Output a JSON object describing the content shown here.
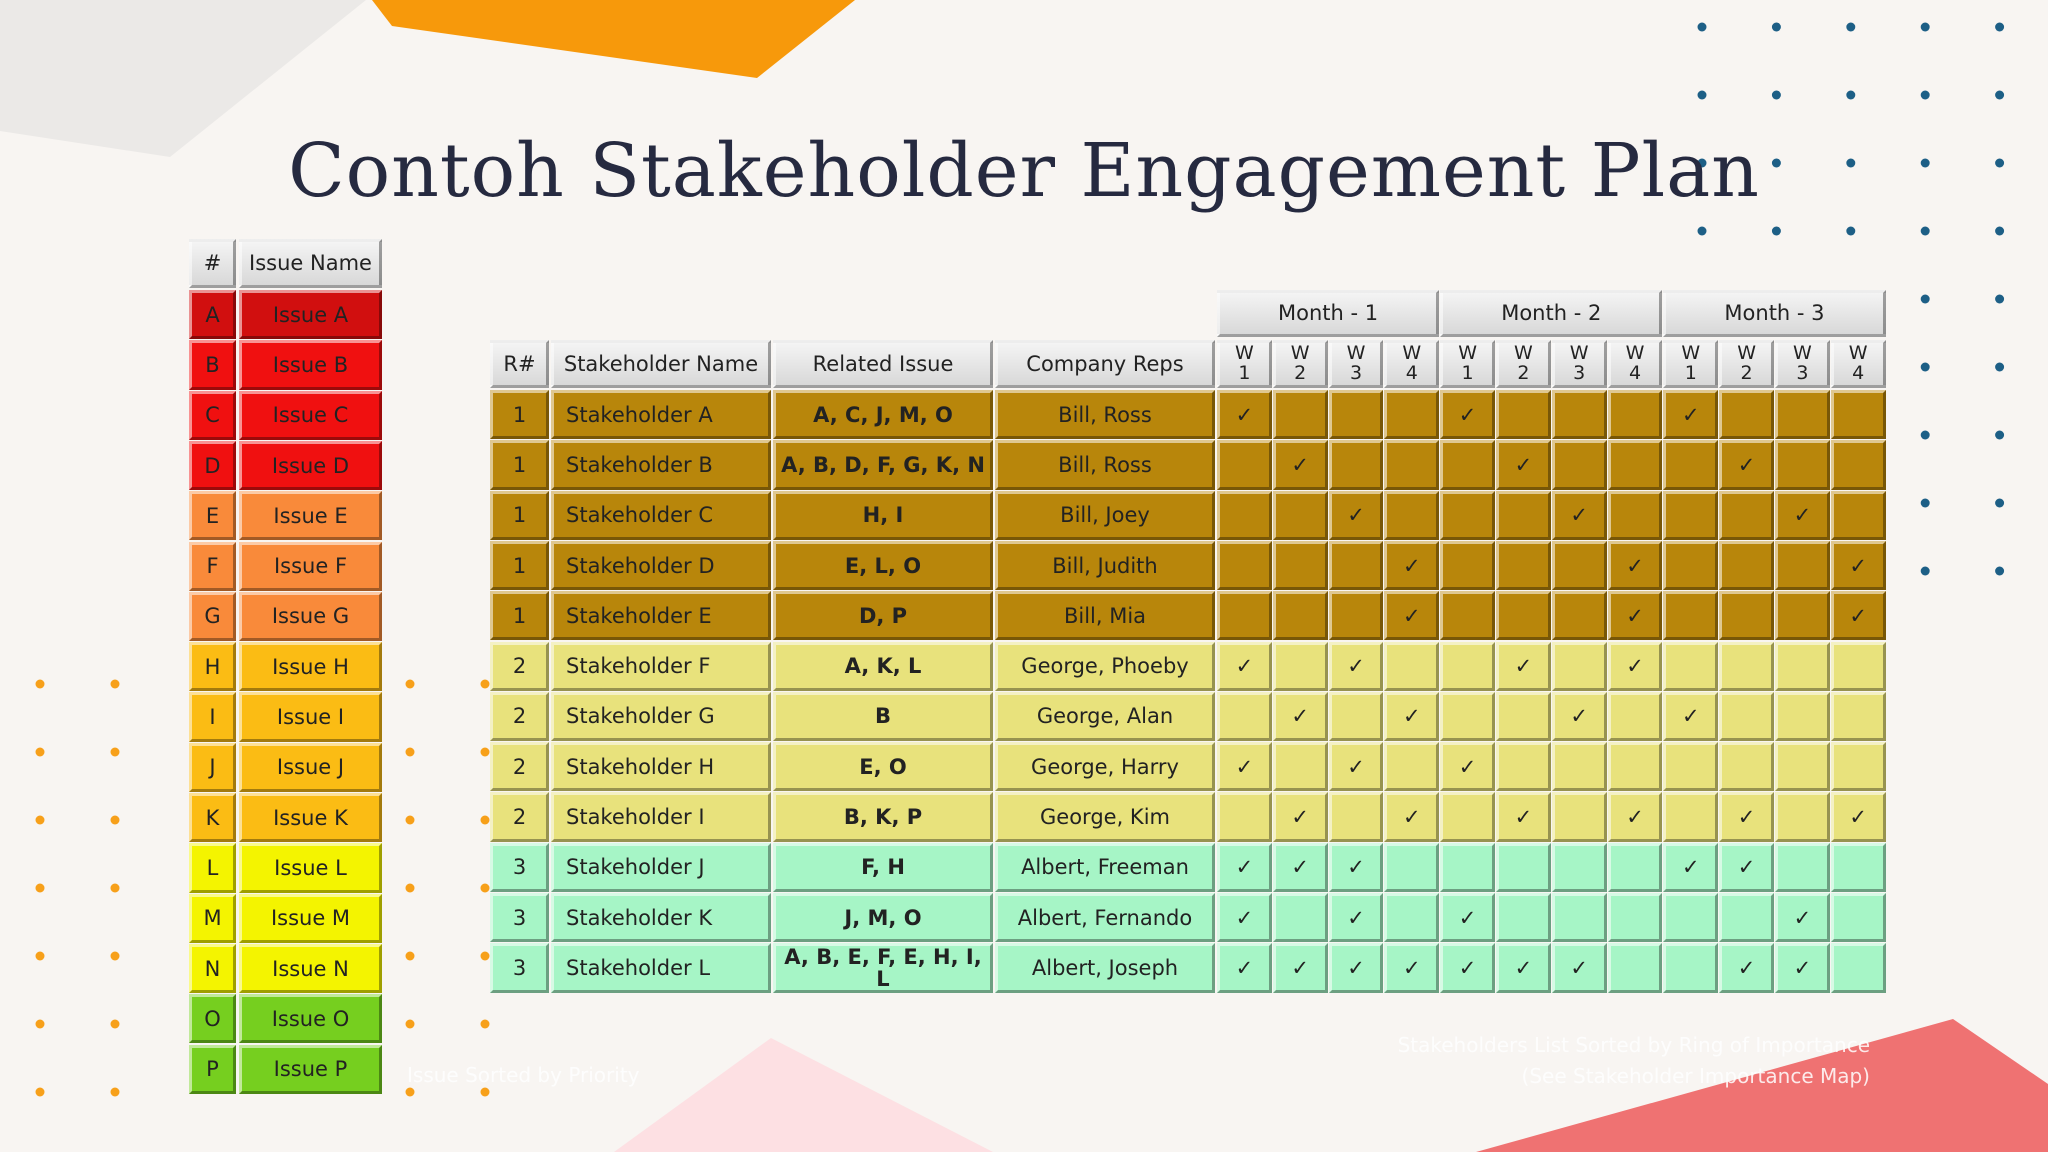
{
  "title": "Contoh Stakeholder Engagement Plan",
  "issues": {
    "header": [
      "#",
      "Issue Name"
    ],
    "rows": [
      [
        "A",
        "Issue A"
      ],
      [
        "B",
        "Issue B"
      ],
      [
        "C",
        "Issue C"
      ],
      [
        "D",
        "Issue D"
      ],
      [
        "E",
        "Issue E"
      ],
      [
        "F",
        "Issue F"
      ],
      [
        "G",
        "Issue G"
      ],
      [
        "H",
        "Issue H"
      ],
      [
        "I",
        "Issue I"
      ],
      [
        "J",
        "Issue J"
      ],
      [
        "K",
        "Issue K"
      ],
      [
        "L",
        "Issue L"
      ],
      [
        "M",
        "Issue M"
      ],
      [
        "N",
        "Issue N"
      ],
      [
        "O",
        "Issue O"
      ],
      [
        "P",
        "Issue P"
      ]
    ],
    "colors": [
      "#d10f0f",
      "#f01010",
      "#f01010",
      "#f01010",
      "#f98a3a",
      "#f98a3a",
      "#f98a3a",
      "#fbbc14",
      "#fbbc14",
      "#fbbc14",
      "#fbbc14",
      "#f4f400",
      "#f4f400",
      "#f4f400",
      "#76cf1f",
      "#76cf1f"
    ]
  },
  "stakeholders": {
    "header": [
      "R#",
      "Stakeholder Name",
      "Related Issue",
      "Company Reps"
    ],
    "months": [
      "Month - 1",
      "Month - 2",
      "Month - 3"
    ],
    "weeks": [
      "W 1",
      "W 2",
      "W 3",
      "W 4"
    ],
    "rank_colors": {
      "1": "#b8860b",
      "2": "#e8e27c",
      "3": "#a6f5c6"
    },
    "rows": [
      {
        "rank": 1,
        "name": "Stakeholder A",
        "issues": "A, C, J, M, O",
        "reps": "Bill, Ross",
        "checks": [
          "✓",
          null,
          null,
          null,
          "✓",
          null,
          null,
          null,
          "✓",
          null,
          null,
          null
        ]
      },
      {
        "rank": 1,
        "name": "Stakeholder B",
        "issues": "A, B, D, F, G, K, N",
        "reps": "Bill, Ross",
        "checks": [
          null,
          "✓",
          null,
          null,
          null,
          "✓",
          null,
          null,
          null,
          "✓",
          null,
          null
        ]
      },
      {
        "rank": 1,
        "name": "Stakeholder C",
        "issues": "H, I",
        "reps": "Bill, Joey",
        "checks": [
          null,
          null,
          "✓",
          null,
          null,
          null,
          "✓",
          null,
          null,
          null,
          "✓",
          null
        ]
      },
      {
        "rank": 1,
        "name": "Stakeholder D",
        "issues": "E, L, O",
        "reps": "Bill, Judith",
        "checks": [
          null,
          null,
          null,
          "✓",
          null,
          null,
          null,
          "✓",
          null,
          null,
          null,
          "✓"
        ]
      },
      {
        "rank": 1,
        "name": "Stakeholder E",
        "issues": "D, P",
        "reps": "Bill, Mia",
        "checks": [
          null,
          null,
          null,
          "✓",
          null,
          null,
          null,
          "✓",
          null,
          null,
          null,
          "✓"
        ]
      },
      {
        "rank": 2,
        "name": "Stakeholder F",
        "issues": "A, K, L",
        "reps": "George, Phoeby",
        "checks": [
          "✓",
          null,
          "✓",
          null,
          null,
          "✓",
          null,
          "✓",
          null,
          null,
          null,
          null
        ]
      },
      {
        "rank": 2,
        "name": "Stakeholder G",
        "issues": "B",
        "reps": "George, Alan",
        "checks": [
          null,
          "✓",
          null,
          "✓",
          null,
          null,
          "✓",
          null,
          "✓",
          null,
          null,
          null
        ]
      },
      {
        "rank": 2,
        "name": "Stakeholder H",
        "issues": "E, O",
        "reps": "George, Harry",
        "checks": [
          "✓",
          null,
          "✓",
          null,
          "✓",
          null,
          null,
          null,
          null,
          null,
          null,
          null
        ]
      },
      {
        "rank": 2,
        "name": "Stakeholder I",
        "issues": "B, K, P",
        "reps": "George, Kim",
        "checks": [
          null,
          "✓",
          null,
          "✓",
          null,
          "✓",
          null,
          "✓",
          null,
          "✓",
          null,
          "✓"
        ]
      },
      {
        "rank": 3,
        "name": "Stakeholder J",
        "issues": "F, H",
        "reps": "Albert, Freeman",
        "checks": [
          "✓",
          "✓",
          "✓",
          null,
          null,
          null,
          null,
          null,
          "✓",
          "✓",
          null,
          null
        ]
      },
      {
        "rank": 3,
        "name": "Stakeholder K",
        "issues": "J, M, O",
        "reps": "Albert, Fernando",
        "checks": [
          "✓",
          null,
          "✓",
          null,
          "✓",
          null,
          null,
          null,
          null,
          null,
          "✓",
          null
        ]
      },
      {
        "rank": 3,
        "name": "Stakeholder L",
        "issues": "A, B, E, F, E, H, I, L",
        "reps": "Albert, Joseph",
        "checks": [
          "✓",
          "✓",
          "✓",
          "✓",
          "✓",
          "✓",
          "✓",
          null,
          null,
          "✓",
          "✓",
          null
        ]
      }
    ]
  },
  "notes": {
    "issues": "Issue Sorted by Priority",
    "stakeholders": [
      "Stakeholders List Sorted by Ring of Importance",
      "(See Stakeholder Importance Map)"
    ]
  }
}
